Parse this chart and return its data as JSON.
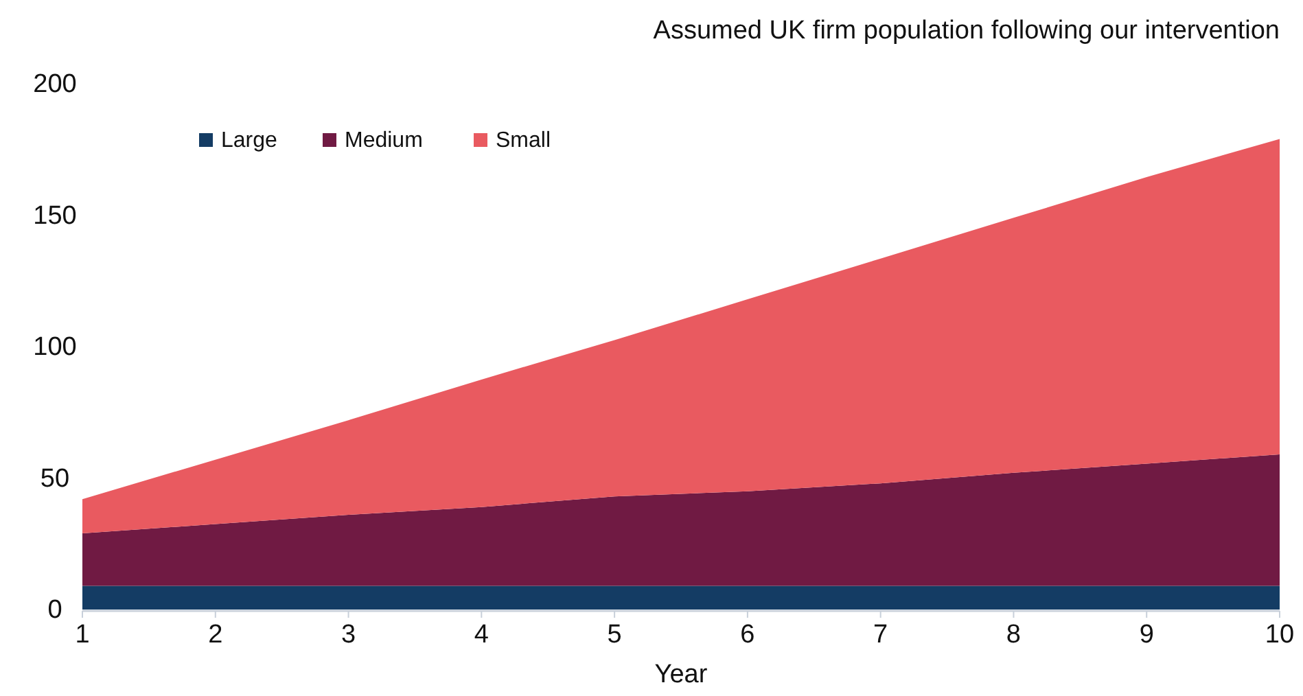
{
  "chart_data": {
    "type": "area",
    "stacked": true,
    "title": "Assumed UK firm population following our intervention",
    "xlabel": "Year",
    "x": [
      1,
      2,
      3,
      4,
      5,
      6,
      7,
      8,
      9,
      10
    ],
    "xlim": [
      1,
      10
    ],
    "xticks": [
      1,
      2,
      3,
      4,
      5,
      6,
      7,
      8,
      9,
      10
    ],
    "ylim": [
      0,
      200
    ],
    "yticks": [
      0,
      50,
      100,
      150,
      200
    ],
    "grid": false,
    "legend": "top left",
    "series": [
      {
        "name": "Large",
        "color": "#143c64",
        "values": [
          9,
          9,
          9,
          9,
          9,
          9,
          9,
          9,
          9,
          9
        ]
      },
      {
        "name": "Medium",
        "color": "#701a43",
        "values": [
          20,
          23.5,
          27,
          30,
          34,
          36,
          39,
          43,
          46.5,
          50
        ]
      },
      {
        "name": "Small",
        "color": "#e95a60",
        "values": [
          13,
          24.5,
          36,
          48.5,
          59.5,
          73,
          85.5,
          97,
          109,
          120
        ]
      }
    ]
  }
}
